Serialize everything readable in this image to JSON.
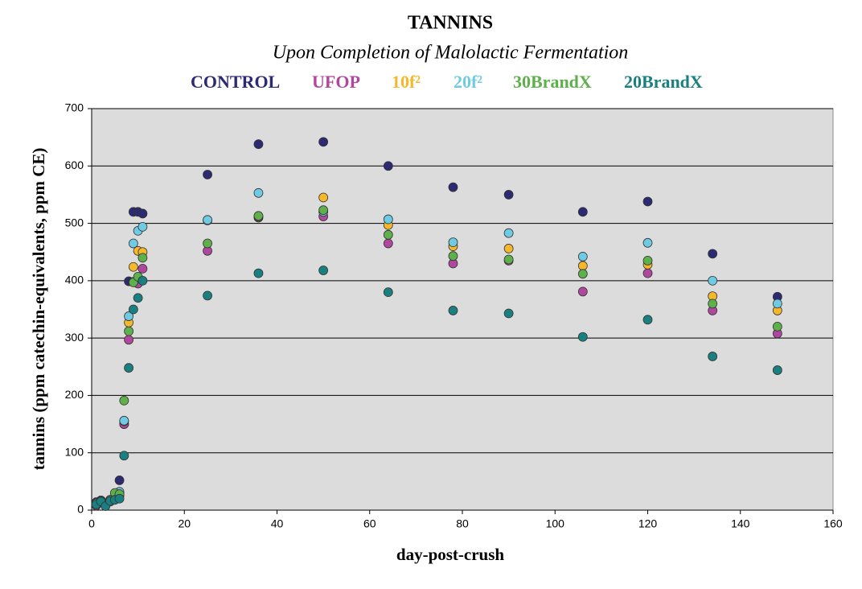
{
  "chart_data": {
    "type": "scatter",
    "title": "TANNINS",
    "subtitle": "Upon Completion of Malolactic Fermentation",
    "x_label": "day-post-crush",
    "y_label": "tannins (ppm catechin-equivalents, ppm CE)",
    "x": [
      1,
      2,
      3,
      4,
      5,
      6,
      7,
      8,
      9,
      10,
      11,
      25,
      36,
      50,
      64,
      78,
      90,
      106,
      120,
      134,
      148
    ],
    "series": [
      {
        "name": "CONTROL",
        "color": "#2b2a72",
        "values": [
          14,
          17,
          12,
          18,
          20,
          52,
          150,
          399,
          520,
          520,
          517,
          585,
          638,
          642,
          600,
          563,
          550,
          520,
          538,
          447,
          372
        ]
      },
      {
        "name": "UFOP",
        "color": "#b0479f",
        "values": [
          8,
          16,
          12,
          15,
          20,
          25,
          150,
          297,
          398,
          395,
          421,
          452,
          510,
          512,
          465,
          430,
          435,
          381,
          413,
          348,
          308
        ]
      },
      {
        "name": "10f²",
        "color": "#f5b82a",
        "values": [
          10,
          16,
          12,
          16,
          22,
          28,
          155,
          327,
          424,
          452,
          450,
          505,
          512,
          545,
          497,
          460,
          456,
          426,
          428,
          373,
          348
        ]
      },
      {
        "name": "20f²",
        "color": "#6ecbe3",
        "values": [
          12,
          17,
          12,
          18,
          22,
          32,
          156,
          338,
          465,
          487,
          494,
          506,
          553,
          520,
          507,
          467,
          483,
          442,
          466,
          400,
          360
        ]
      },
      {
        "name": "30BrandX",
        "color": "#5db04a",
        "values": [
          12,
          16,
          10,
          18,
          30,
          28,
          191,
          312,
          397,
          407,
          440,
          465,
          513,
          523,
          480,
          443,
          437,
          412,
          435,
          360,
          320
        ]
      },
      {
        "name": "20BrandX",
        "color": "#1a7f80",
        "values": [
          10,
          15,
          7,
          16,
          18,
          20,
          95,
          248,
          350,
          370,
          400,
          374,
          413,
          418,
          380,
          348,
          343,
          302,
          332,
          268,
          244
        ]
      }
    ],
    "xlim": [
      0,
      160
    ],
    "xticks": [
      0,
      20,
      40,
      60,
      80,
      100,
      120,
      140,
      160
    ],
    "ylim": [
      0,
      700
    ],
    "yticks": [
      0,
      100,
      200,
      300,
      400,
      500,
      600,
      700
    ],
    "grid": true
  }
}
